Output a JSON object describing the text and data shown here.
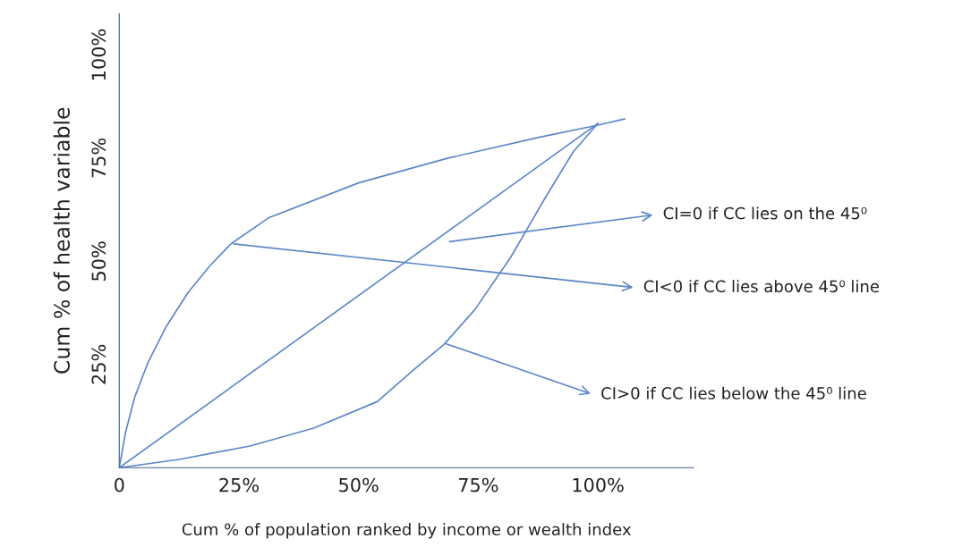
{
  "chart_data": {
    "type": "line",
    "xlabel": "Cum % of population ranked by income or wealth index",
    "ylabel": "Cum % of health variable",
    "xlim": [
      0,
      120
    ],
    "ylim": [
      0,
      110
    ],
    "xticks": [
      0,
      {
        "value": 25,
        "label": "25%"
      },
      {
        "value": 50,
        "label": "50%"
      },
      {
        "value": 75,
        "label": "75%"
      },
      {
        "value": 100,
        "label": "100%"
      }
    ],
    "yticks": [
      {
        "value": 25,
        "label": "25%"
      },
      {
        "value": 50,
        "label": "50%"
      },
      {
        "value": 75,
        "label": "75%"
      },
      {
        "value": 100,
        "label": "100%"
      }
    ],
    "grid": false,
    "marker": "none",
    "line_style": "solid",
    "series": [
      {
        "color": "#5b87c7",
        "x": [
          0,
          1.3,
          3.2,
          6,
          9.7,
          14.4,
          19,
          23.4,
          31.3,
          50,
          68.7,
          87.5,
          100,
          105.6
        ],
        "values": [
          0,
          8.5,
          17,
          25.5,
          34,
          42.5,
          49,
          54.3,
          60.6,
          69,
          75,
          80,
          83,
          84.5
        ]
      },
      {
        "color": "#5b87c7",
        "x": [
          0,
          100
        ],
        "values": [
          0,
          83.4
        ]
      },
      {
        "color": "#5b87c7",
        "x": [
          0,
          12.5,
          27.5,
          40.6,
          53.9,
          61.2,
          67.8,
          74.3,
          81.8,
          89.3,
          94.9,
          100
        ],
        "values": [
          0,
          2,
          5.3,
          9.6,
          16,
          23.4,
          29.8,
          38.3,
          51,
          66,
          76.6,
          83.4
        ]
      }
    ],
    "annotations": [
      "CI=0 if CC lies on the 45⁰",
      {
        "text": "CI<0 if CC lies above 45⁰ line",
        "x": 23.4,
        "y": 54.3
      },
      {
        "text": "CI>0 if CC lies below the 45⁰ line",
        "x": 67.8,
        "y": 30.2
      }
    ]
  }
}
